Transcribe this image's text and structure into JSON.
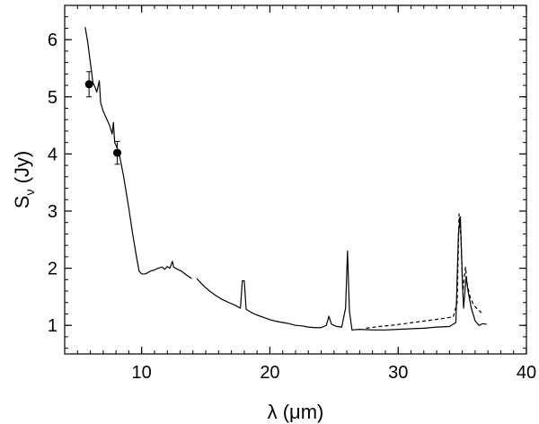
{
  "chart_data": {
    "type": "line",
    "xlabel": "λ (μm)",
    "ylabel": "S",
    "ylabel_sub": "ν",
    "ylabel_unit": " (Jy)",
    "xlim": [
      4,
      40
    ],
    "ylim": [
      0.5,
      6.6
    ],
    "x_ticks": [
      10,
      20,
      30,
      40
    ],
    "y_ticks": [
      1,
      2,
      3,
      4,
      5,
      6
    ],
    "x_minor_step": 1,
    "y_minor_step": 0.2,
    "grid": false,
    "series": [
      {
        "style": "solid",
        "color": "#000000",
        "segments": [
          [
            [
              5.6,
              6.22
            ],
            [
              5.8,
              5.95
            ],
            [
              6.0,
              5.6
            ],
            [
              6.2,
              5.25
            ],
            [
              6.4,
              5.15
            ],
            [
              6.5,
              5.08
            ],
            [
              6.7,
              5.28
            ],
            [
              6.8,
              4.9
            ],
            [
              7.0,
              4.75
            ],
            [
              7.3,
              4.6
            ],
            [
              7.5,
              4.5
            ],
            [
              7.7,
              4.35
            ],
            [
              7.8,
              4.55
            ],
            [
              7.9,
              4.2
            ],
            [
              8.1,
              4.1
            ],
            [
              8.3,
              3.95
            ],
            [
              8.6,
              3.6
            ],
            [
              9.0,
              3.05
            ],
            [
              9.3,
              2.6
            ],
            [
              9.6,
              2.2
            ],
            [
              9.8,
              1.95
            ],
            [
              10.0,
              1.9
            ],
            [
              10.3,
              1.9
            ],
            [
              10.7,
              1.95
            ],
            [
              11.0,
              1.97
            ],
            [
              11.3,
              2.0
            ],
            [
              11.6,
              2.02
            ],
            [
              11.8,
              1.98
            ],
            [
              12.0,
              2.03
            ],
            [
              12.2,
              2.0
            ],
            [
              12.4,
              2.12
            ],
            [
              12.5,
              2.02
            ],
            [
              12.8,
              1.98
            ],
            [
              13.1,
              1.95
            ],
            [
              13.5,
              1.88
            ],
            [
              13.9,
              1.82
            ]
          ],
          [
            [
              14.3,
              1.82
            ],
            [
              14.8,
              1.7
            ],
            [
              15.3,
              1.6
            ],
            [
              15.8,
              1.52
            ],
            [
              16.3,
              1.45
            ],
            [
              16.8,
              1.4
            ],
            [
              17.3,
              1.35
            ],
            [
              17.7,
              1.3
            ],
            [
              17.85,
              1.78
            ],
            [
              18.0,
              1.78
            ],
            [
              18.15,
              1.28
            ],
            [
              18.6,
              1.22
            ],
            [
              19.0,
              1.18
            ],
            [
              19.5,
              1.14
            ],
            [
              20.0,
              1.1
            ],
            [
              20.5,
              1.07
            ],
            [
              21.0,
              1.05
            ],
            [
              21.5,
              1.03
            ],
            [
              22.0,
              1.0
            ],
            [
              22.5,
              0.99
            ],
            [
              23.0,
              0.97
            ],
            [
              23.5,
              0.96
            ],
            [
              24.0,
              0.96
            ],
            [
              24.4,
              1.0
            ],
            [
              24.6,
              1.16
            ],
            [
              24.8,
              1.02
            ],
            [
              25.2,
              0.98
            ],
            [
              25.6,
              0.97
            ],
            [
              25.9,
              1.3
            ],
            [
              26.05,
              2.3
            ],
            [
              26.2,
              1.25
            ],
            [
              26.4,
              0.92
            ],
            [
              27.0,
              0.93
            ],
            [
              28.0,
              0.92
            ],
            [
              29.0,
              0.92
            ],
            [
              30.0,
              0.93
            ],
            [
              31.0,
              0.94
            ],
            [
              32.0,
              0.95
            ],
            [
              33.0,
              0.97
            ],
            [
              34.0,
              0.98
            ],
            [
              34.5,
              1.05
            ],
            [
              34.7,
              2.6
            ],
            [
              34.85,
              2.9
            ],
            [
              35.0,
              1.8
            ],
            [
              35.1,
              1.3
            ],
            [
              35.3,
              1.85
            ],
            [
              35.45,
              1.6
            ],
            [
              35.7,
              1.3
            ],
            [
              36.0,
              1.08
            ],
            [
              36.3,
              1.0
            ],
            [
              36.6,
              1.03
            ],
            [
              36.9,
              1.02
            ]
          ]
        ]
      },
      {
        "style": "dashed",
        "color": "#000000",
        "segments": [
          [
            [
              27.5,
              0.95
            ],
            [
              28.5,
              0.98
            ],
            [
              29.5,
              1.0
            ],
            [
              30.5,
              1.03
            ],
            [
              31.5,
              1.06
            ],
            [
              32.5,
              1.09
            ],
            [
              33.5,
              1.12
            ],
            [
              34.3,
              1.15
            ],
            [
              34.6,
              1.4
            ],
            [
              34.75,
              2.95
            ],
            [
              34.9,
              2.5
            ],
            [
              35.05,
              1.6
            ],
            [
              35.25,
              2.02
            ],
            [
              35.4,
              1.7
            ],
            [
              35.6,
              1.5
            ],
            [
              35.9,
              1.35
            ],
            [
              36.2,
              1.28
            ],
            [
              36.5,
              1.22
            ]
          ]
        ]
      }
    ],
    "points": [
      {
        "x": 5.9,
        "y": 5.22,
        "err": 0.22
      },
      {
        "x": 8.1,
        "y": 4.02,
        "err": 0.2
      }
    ]
  }
}
